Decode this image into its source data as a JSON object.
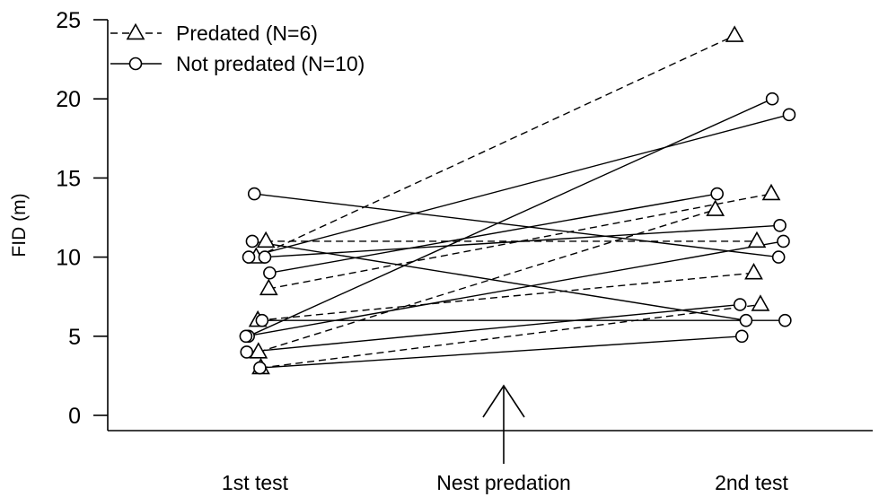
{
  "chart_data": {
    "type": "line",
    "title": "",
    "xlabel": "",
    "ylabel": "FID (m)",
    "ylim": [
      0,
      25
    ],
    "yticks": [
      0,
      5,
      10,
      15,
      20,
      25
    ],
    "xticks": [
      "1st test",
      "Nest predation",
      "2nd test"
    ],
    "annotation": "arrow marking nest predation between tests",
    "legend_position": "top-left",
    "series": [
      {
        "name": "Predated (N=6)",
        "marker": "triangle",
        "line_style": "dashed",
        "pairs": [
          [
            11,
            11
          ],
          [
            10,
            24
          ],
          [
            8,
            14
          ],
          [
            6,
            9
          ],
          [
            4,
            13
          ],
          [
            3,
            7
          ]
        ]
      },
      {
        "name": "Not predated (N=10)",
        "marker": "circle",
        "line_style": "solid",
        "pairs": [
          [
            14,
            10
          ],
          [
            11,
            6
          ],
          [
            10,
            19
          ],
          [
            10,
            12
          ],
          [
            9,
            14
          ],
          [
            6,
            6
          ],
          [
            5,
            20
          ],
          [
            5,
            11
          ],
          [
            4,
            7
          ],
          [
            3,
            5
          ]
        ]
      }
    ]
  }
}
